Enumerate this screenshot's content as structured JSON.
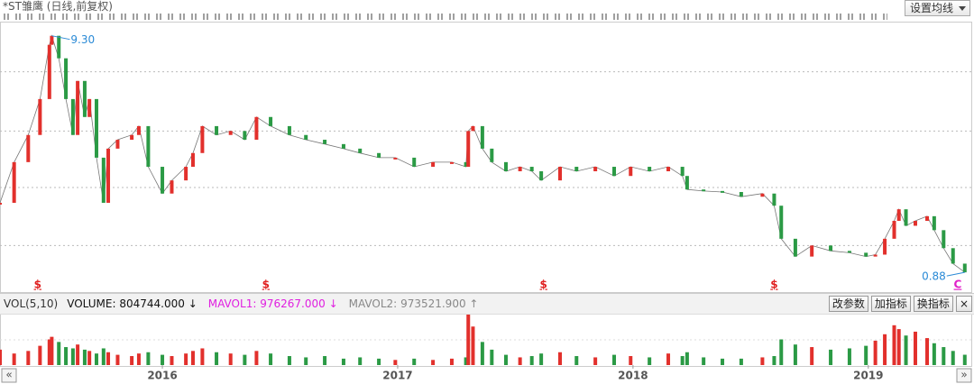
{
  "header": {
    "title": "*ST雏鹰 (日线,前复权)",
    "button": "设置均线"
  },
  "chart_data": [
    {
      "type": "line",
      "log": true,
      "grid": true,
      "up_color": "#e2302c",
      "down_color": "#2b9a45",
      "xlim": [
        2015.31,
        2019.43
      ],
      "ylim": [
        0.82,
        11.1
      ],
      "yticks": [
        1.15,
        2.05,
        3.6,
        6.5
      ],
      "x": [
        2015.31,
        2015.37,
        2015.43,
        2015.48,
        2015.52,
        2015.53,
        2015.56,
        2015.59,
        2015.62,
        2015.64,
        2015.67,
        2015.69,
        2015.72,
        2015.75,
        2015.77,
        2015.81,
        2015.87,
        2015.9,
        2015.94,
        2016.0,
        2016.04,
        2016.1,
        2016.13,
        2016.17,
        2016.23,
        2016.29,
        2016.35,
        2016.4,
        2016.46,
        2016.54,
        2016.61,
        2016.69,
        2016.77,
        2016.84,
        2016.92,
        2016.99,
        2017.07,
        2017.15,
        2017.23,
        2017.29,
        2017.3,
        2017.32,
        2017.36,
        2017.4,
        2017.46,
        2017.52,
        2017.57,
        2017.61,
        2017.69,
        2017.76,
        2017.84,
        2017.92,
        2017.99,
        2018.07,
        2018.15,
        2018.21,
        2018.23,
        2018.3,
        2018.38,
        2018.46,
        2018.55,
        2018.6,
        2018.63,
        2018.69,
        2018.76,
        2018.84,
        2018.92,
        2018.99,
        2019.03,
        2019.07,
        2019.11,
        2019.13,
        2019.16,
        2019.2,
        2019.25,
        2019.28,
        2019.32,
        2019.36,
        2019.41
      ],
      "values": [
        1.76,
        2.64,
        3.46,
        4.95,
        8.5,
        9.3,
        7.43,
        4.95,
        3.46,
        5.93,
        4.14,
        4.95,
        2.76,
        1.76,
        3.02,
        3.3,
        3.46,
        3.78,
        2.52,
        1.93,
        2.2,
        2.52,
        2.89,
        3.78,
        3.46,
        3.6,
        3.3,
        4.14,
        3.78,
        3.46,
        3.3,
        3.16,
        3.02,
        2.89,
        2.76,
        2.76,
        2.52,
        2.64,
        2.64,
        2.52,
        3.6,
        3.78,
        3.02,
        2.64,
        2.41,
        2.52,
        2.41,
        2.2,
        2.52,
        2.41,
        2.52,
        2.3,
        2.52,
        2.41,
        2.52,
        2.3,
        2.01,
        1.98,
        1.96,
        1.87,
        1.93,
        1.71,
        1.23,
        1.03,
        1.15,
        1.09,
        1.07,
        1.03,
        1.05,
        1.23,
        1.47,
        1.65,
        1.4,
        1.47,
        1.54,
        1.34,
        1.12,
        0.96,
        0.88
      ],
      "annotations": [
        {
          "value": 9.3,
          "label": "9.30",
          "x": 2015.53,
          "color": "#2a8ad6"
        },
        {
          "value": 0.88,
          "label": "0.88",
          "x": 2019.41,
          "color": "#2a8ad6"
        }
      ],
      "markers": [
        {
          "label": "$",
          "x": 2015.47,
          "color": "#e02020"
        },
        {
          "label": "$",
          "x": 2016.44,
          "color": "#e02020"
        },
        {
          "label": "$",
          "x": 2017.62,
          "color": "#e02020"
        },
        {
          "label": "$",
          "x": 2018.6,
          "color": "#e02020"
        },
        {
          "label": "C",
          "x": 2019.38,
          "color": "#e020c8"
        }
      ]
    },
    {
      "type": "bar",
      "xlim": [
        2015.31,
        2019.43
      ],
      "ylim": [
        0,
        4000000
      ],
      "xticks": [
        2016,
        2017,
        2018,
        2019
      ],
      "x": [
        2015.31,
        2015.37,
        2015.43,
        2015.48,
        2015.52,
        2015.53,
        2015.56,
        2015.59,
        2015.62,
        2015.64,
        2015.67,
        2015.69,
        2015.72,
        2015.75,
        2015.77,
        2015.81,
        2015.87,
        2015.9,
        2015.94,
        2016.0,
        2016.04,
        2016.1,
        2016.13,
        2016.17,
        2016.23,
        2016.29,
        2016.35,
        2016.4,
        2016.46,
        2016.54,
        2016.61,
        2016.69,
        2016.77,
        2016.84,
        2016.92,
        2016.99,
        2017.07,
        2017.15,
        2017.23,
        2017.29,
        2017.3,
        2017.32,
        2017.36,
        2017.4,
        2017.46,
        2017.52,
        2017.57,
        2017.61,
        2017.69,
        2017.76,
        2017.84,
        2017.92,
        2017.99,
        2018.07,
        2018.15,
        2018.21,
        2018.23,
        2018.3,
        2018.38,
        2018.46,
        2018.55,
        2018.6,
        2018.63,
        2018.69,
        2018.76,
        2018.84,
        2018.92,
        2018.99,
        2019.03,
        2019.07,
        2019.11,
        2019.13,
        2019.16,
        2019.2,
        2019.25,
        2019.28,
        2019.32,
        2019.36,
        2019.41
      ],
      "values": [
        1200000,
        900000,
        1100000,
        1500000,
        2000000,
        2200000,
        1800000,
        1400000,
        1300000,
        1600000,
        1200000,
        1100000,
        900000,
        1300000,
        1000000,
        800000,
        700000,
        900000,
        1000000,
        800000,
        700000,
        900000,
        1100000,
        1300000,
        1000000,
        900000,
        800000,
        1100000,
        900000,
        700000,
        600000,
        700000,
        500000,
        600000,
        500000,
        400000,
        500000,
        400000,
        500000,
        600000,
        4000000,
        3000000,
        1800000,
        1200000,
        800000,
        600000,
        700000,
        900000,
        1000000,
        700000,
        600000,
        800000,
        700000,
        600000,
        900000,
        700000,
        1000000,
        600000,
        500000,
        500000,
        600000,
        700000,
        2000000,
        1600000,
        1400000,
        1200000,
        1300000,
        1500000,
        1900000,
        2400000,
        3100000,
        2800000,
        2300000,
        2600000,
        2100000,
        1700000,
        1400000,
        1100000,
        804744
      ]
    }
  ],
  "volume_header": {
    "label": "VOL(5,10)",
    "indicators": [
      {
        "name": "VOLUME:",
        "value": 804744,
        "label": "804744.000",
        "arrow": "↓",
        "color": "#111"
      },
      {
        "name": "MAVOL1:",
        "value": 976267,
        "label": "976267.000",
        "arrow": "↓",
        "color": "#e020e0"
      },
      {
        "name": "MAVOL2:",
        "value": 973521.9,
        "label": "973521.900",
        "arrow": "↑",
        "color": "#888"
      }
    ]
  },
  "toolbar": {
    "buttons": [
      "改参数",
      "加指标",
      "换指标"
    ],
    "close": "×",
    "prev": "«",
    "next": "»"
  }
}
